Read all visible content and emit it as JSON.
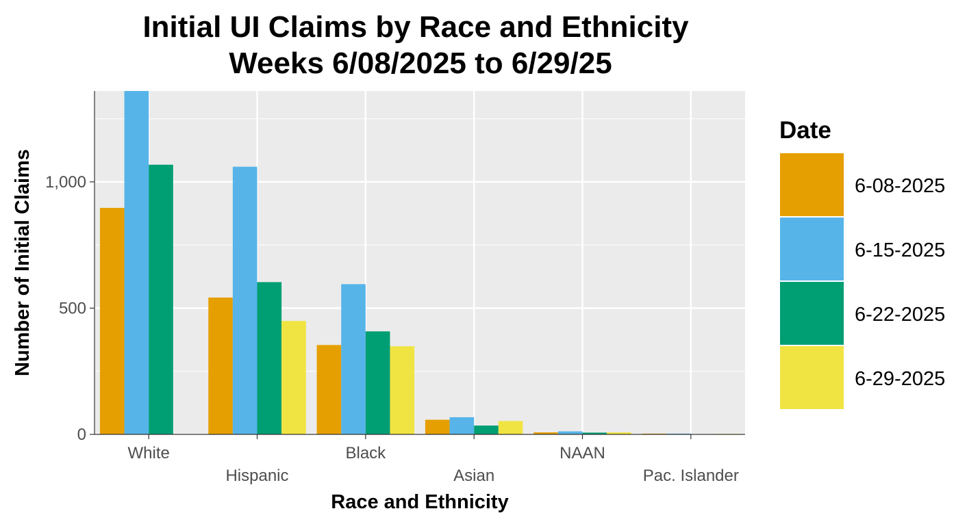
{
  "chart_data": {
    "type": "bar",
    "title": "Initial UI Claims by Race and Ethnicity",
    "subtitle": "Weeks  6/08/2025 to 6/29/25",
    "xlabel": "Race and Ethnicity",
    "ylabel": "Number of Initial Claims",
    "categories": [
      "White",
      "Hispanic",
      "Black",
      "Asian",
      "NAAN",
      "Pac. Islander"
    ],
    "ylim": [
      0,
      1360
    ],
    "yticks": [
      0,
      500,
      1000
    ],
    "ytick_labels": [
      "0",
      "500",
      "1,000"
    ],
    "grid": true,
    "legend": {
      "title": "Date",
      "position": "right"
    },
    "series": [
      {
        "name": "6-08-2025",
        "color": "#E69F00",
        "values": [
          897,
          542,
          354,
          58,
          8,
          3
        ]
      },
      {
        "name": "6-15-2025",
        "color": "#56B4E9",
        "values": [
          1360,
          1060,
          595,
          68,
          12,
          3
        ]
      },
      {
        "name": "6-22-2025",
        "color": "#009E73",
        "values": [
          1068,
          603,
          408,
          35,
          7,
          0
        ]
      },
      {
        "name": "6-29-2025",
        "color": "#F0E442",
        "values": [
          0,
          449,
          349,
          53,
          8,
          2
        ]
      }
    ]
  }
}
